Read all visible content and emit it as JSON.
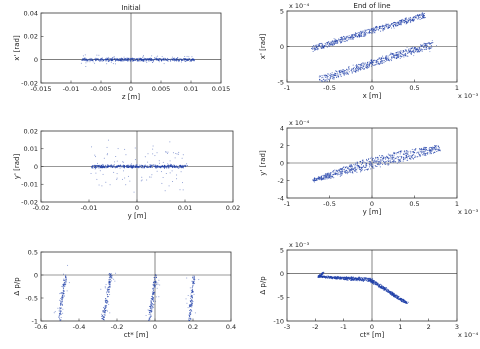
{
  "figure": {
    "panel_titles": [
      "Initial",
      "End of line"
    ]
  },
  "chart_data": [
    {
      "type": "scatter",
      "title": "Initial",
      "xlabel": "z [m]",
      "ylabel": "x' [rad]",
      "xlim": [
        -0.015,
        0.015
      ],
      "ylim": [
        -0.02,
        0.04
      ],
      "xticks": [
        "-0.015",
        "-0.01",
        "-0.005",
        "0",
        "0.005",
        "0.01",
        "0.015"
      ],
      "yticks": [
        "-0.02",
        "0",
        "0.02",
        "0.04"
      ],
      "x_exponent": "",
      "y_exponent": "",
      "color": "#1f3fa8",
      "series": [
        {
          "shape": "band",
          "points": [
            [
              -0.0082,
              0.0
            ],
            [
              0.0105,
              0.0
            ]
          ],
          "halfwidth": 0.0011,
          "dense": 430,
          "sparse": 90,
          "spread": [
            0.0,
            0.0012
          ]
        }
      ]
    },
    {
      "type": "scatter",
      "title": "End of line",
      "xlabel": "x [m]",
      "ylabel": "x' [rad]",
      "xlim": [
        -1,
        1
      ],
      "ylim": [
        -5,
        5
      ],
      "xticks": [
        "-1",
        "-0.5",
        "0",
        "0.5",
        "1"
      ],
      "yticks": [
        "-5",
        "0",
        "5"
      ],
      "x_exponent": "x 10⁻³",
      "y_exponent": "x 10⁻⁴",
      "color": "#1f3fa8",
      "series": [
        {
          "shape": "band",
          "points": [
            [
              -0.7,
              -0.3
            ],
            [
              0.62,
              4.4
            ]
          ],
          "halfwidth": 0.35,
          "dense": 520,
          "sparse": 30,
          "spread": [
            0.0,
            0.0
          ]
        },
        {
          "shape": "band",
          "points": [
            [
              -0.62,
              -4.7
            ],
            [
              0.72,
              0.3
            ]
          ],
          "halfwidth": 0.45,
          "dense": 520,
          "sparse": 30,
          "spread": [
            0.0,
            0.0
          ]
        }
      ]
    },
    {
      "type": "scatter",
      "xlabel": "y [m]",
      "ylabel": "y' [rad]",
      "xlim": [
        -0.02,
        0.02
      ],
      "ylim": [
        -0.02,
        0.02
      ],
      "xticks": [
        "-0.02",
        "-0.01",
        "0",
        "0.01",
        "0.02"
      ],
      "yticks": [
        "-0.02",
        "-0.01",
        "0",
        "0.01",
        "0.02"
      ],
      "x_exponent": "",
      "y_exponent": "",
      "color": "#1f3fa8",
      "series": [
        {
          "shape": "band",
          "points": [
            [
              -0.0095,
              0.0
            ],
            [
              0.0105,
              0.0
            ]
          ],
          "halfwidth": 0.0007,
          "dense": 420,
          "sparse": 110,
          "spread": [
            0.0,
            0.006
          ]
        }
      ]
    },
    {
      "type": "scatter",
      "xlabel": "y [m]",
      "ylabel": "y' [rad]",
      "xlim": [
        -1,
        1
      ],
      "ylim": [
        -4,
        4
      ],
      "xticks": [
        "-1",
        "-0.5",
        "0",
        "0.5",
        "1"
      ],
      "yticks": [
        "-4",
        "-2",
        "0",
        "2",
        "4"
      ],
      "x_exponent": "x 10⁻³",
      "y_exponent": "x 10⁻⁴",
      "color": "#1f3fa8",
      "series": [
        {
          "shape": "band",
          "points": [
            [
              -0.7,
              -2.0
            ],
            [
              0.0,
              0.0
            ],
            [
              0.8,
              1.7
            ]
          ],
          "halfwidth": 0.55,
          "dense": 700,
          "sparse": 0,
          "spread": [
            0.0,
            0.0
          ],
          "taper": true
        }
      ]
    },
    {
      "type": "scatter",
      "xlabel": "ct* [m]",
      "ylabel": "Δ p/p",
      "xlim": [
        -0.6,
        0.4
      ],
      "ylim": [
        -1,
        0.5
      ],
      "xticks": [
        "-0.6",
        "-0.4",
        "-0.2",
        "0",
        "0.2",
        "0.4"
      ],
      "yticks": [
        "-1",
        "-0.5",
        "0",
        "0.5"
      ],
      "x_exponent": "",
      "y_exponent": "",
      "color": "#1f3fa8",
      "series": [
        {
          "shape": "band",
          "points": [
            [
              -0.505,
              -1.0
            ],
            [
              -0.47,
              0.02
            ]
          ],
          "halfwidth": 0.01,
          "dense": 90,
          "sparse": 20,
          "spread": [
            0.01,
            0.05
          ]
        },
        {
          "shape": "band",
          "points": [
            [
              -0.275,
              -1.0
            ],
            [
              -0.23,
              0.02
            ]
          ],
          "halfwidth": 0.01,
          "dense": 110,
          "sparse": 20,
          "spread": [
            0.01,
            0.05
          ]
        },
        {
          "shape": "band",
          "points": [
            [
              -0.03,
              -1.0
            ],
            [
              0.005,
              0.02
            ]
          ],
          "halfwidth": 0.01,
          "dense": 110,
          "sparse": 20,
          "spread": [
            0.01,
            0.05
          ]
        },
        {
          "shape": "band",
          "points": [
            [
              0.18,
              -1.0
            ],
            [
              0.205,
              -0.02
            ]
          ],
          "halfwidth": 0.01,
          "dense": 90,
          "sparse": 20,
          "spread": [
            0.01,
            0.05
          ]
        }
      ]
    },
    {
      "type": "scatter",
      "xlabel": "ct* [m]",
      "ylabel": "Δ p/p",
      "xlim": [
        -3,
        3
      ],
      "ylim": [
        -10,
        5
      ],
      "xticks": [
        "-3",
        "-2",
        "-1",
        "0",
        "1",
        "2",
        "3"
      ],
      "yticks": [
        "-10",
        "-5",
        "0",
        "5"
      ],
      "x_exponent": "x 10⁻⁴",
      "y_exponent": "x 10⁻³",
      "color": "#1f3fa8",
      "series": [
        {
          "shape": "band",
          "points": [
            [
              -1.7,
              0.2
            ],
            [
              -1.9,
              -0.6
            ],
            [
              -1.0,
              -1.0
            ],
            [
              -0.1,
              -1.2
            ],
            [
              0.4,
              -3.0
            ],
            [
              1.0,
              -5.4
            ],
            [
              1.25,
              -6.2
            ]
          ],
          "halfwidth": 0.28,
          "dense": 900,
          "sparse": 0,
          "spread": [
            0.0,
            0.0
          ],
          "taper": true
        }
      ]
    }
  ]
}
